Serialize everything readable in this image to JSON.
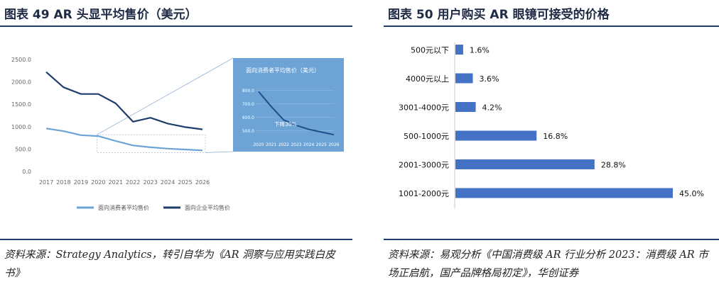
{
  "left": {
    "title": "图表 49   AR 头显平均售价（美元）",
    "source": "资料来源：Strategy Analytics，转引自华为《AR 洞察与应用实践白皮书》",
    "chart_data": {
      "type": "line",
      "x": [
        "2017",
        "2018",
        "2019",
        "2020",
        "2021",
        "2022",
        "2023",
        "2024",
        "2025",
        "2026"
      ],
      "y_ticks": [
        "0.0",
        "500.0",
        "1000.0",
        "1500.0",
        "2000.0",
        "2500.0"
      ],
      "ylim": [
        0,
        2500
      ],
      "series": [
        {
          "name": "面向消费者平均售价",
          "color": "#6aa3d4",
          "values": [
            960,
            900,
            810,
            790,
            680,
            580,
            540,
            510,
            490,
            470
          ]
        },
        {
          "name": "面向企业平均售价",
          "color": "#1f3d6b",
          "values": [
            2220,
            1880,
            1730,
            1730,
            1520,
            1110,
            1200,
            1070,
            990,
            940
          ]
        }
      ],
      "legend": "bottom",
      "inset": {
        "title": "面向消费者平均售价（美元）",
        "annotation": "下降30%",
        "x": [
          "2020",
          "2021",
          "2022",
          "2023",
          "2024",
          "2025",
          "2026"
        ],
        "y_ticks": [
          "500.0",
          "600.0",
          "700.0",
          "800.0"
        ],
        "ylim": [
          450,
          850
        ],
        "values": [
          790,
          680,
          580,
          540,
          510,
          490,
          470
        ],
        "background": "#6ea3d6"
      }
    }
  },
  "right": {
    "title": "图表 50   用户购买 AR 眼镜可接受的价格",
    "source": "资料来源：易观分析《中国消费级 AR 行业分析 2023：消费级 AR 市场正启航，国产品牌格局初定》，华创证券",
    "chart_data": {
      "type": "bar",
      "orientation": "horizontal",
      "categories": [
        "500元以下",
        "4000元以上",
        "3001-4000元",
        "500-1000元",
        "2001-3000元",
        "1001-2000元"
      ],
      "values": [
        1.6,
        3.6,
        4.2,
        16.8,
        28.8,
        45.0
      ],
      "value_labels": [
        "1.6%",
        "3.6%",
        "4.2%",
        "16.8%",
        "28.8%",
        "45.0%"
      ],
      "color": "#4472c4",
      "xlim": [
        0,
        50
      ]
    }
  }
}
